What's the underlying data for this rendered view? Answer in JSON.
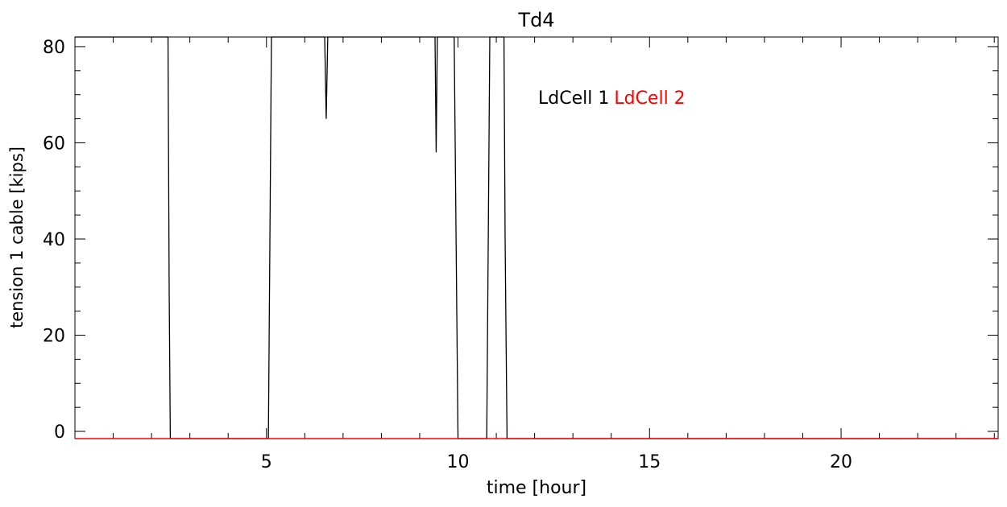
{
  "chart_data": {
    "type": "line",
    "title": "Td4",
    "xlabel": "time [hour]",
    "ylabel": "tension 1 cable [kips]",
    "xlim": [
      0,
      24.1
    ],
    "ylim": [
      -1.5,
      82
    ],
    "xticks": [
      5,
      10,
      15,
      20
    ],
    "yticks": [
      0,
      20,
      40,
      60,
      80
    ],
    "xtick_labels": [
      "5",
      "10",
      "15",
      "20"
    ],
    "ytick_labels": [
      "0",
      "20",
      "40",
      "60",
      "80"
    ],
    "xminor_step": 1,
    "yminor_step": 5,
    "grid": false,
    "legend_position": "top-center-right",
    "series": [
      {
        "name": "LdCell 1",
        "color": "#000000",
        "points": [
          [
            0,
            82
          ],
          [
            2.43,
            82
          ],
          [
            2.46,
            30
          ],
          [
            2.49,
            -1.5
          ],
          [
            5.05,
            -1.5
          ],
          [
            5.09,
            40
          ],
          [
            5.13,
            82
          ],
          [
            6.52,
            82
          ],
          [
            6.56,
            65
          ],
          [
            6.6,
            82
          ],
          [
            9.4,
            82
          ],
          [
            9.43,
            58
          ],
          [
            9.46,
            82
          ],
          [
            9.9,
            82
          ],
          [
            9.95,
            40
          ],
          [
            10.0,
            -1.5
          ],
          [
            10.75,
            -1.5
          ],
          [
            10.79,
            40
          ],
          [
            10.83,
            82
          ],
          [
            11.2,
            82
          ],
          [
            11.23,
            40
          ],
          [
            11.28,
            -1.5
          ],
          [
            24.1,
            -1.5
          ]
        ]
      },
      {
        "name": "LdCell 2",
        "color": "#ff0000",
        "points": [
          [
            0,
            -1.5
          ],
          [
            24.1,
            -1.5
          ]
        ]
      }
    ]
  }
}
